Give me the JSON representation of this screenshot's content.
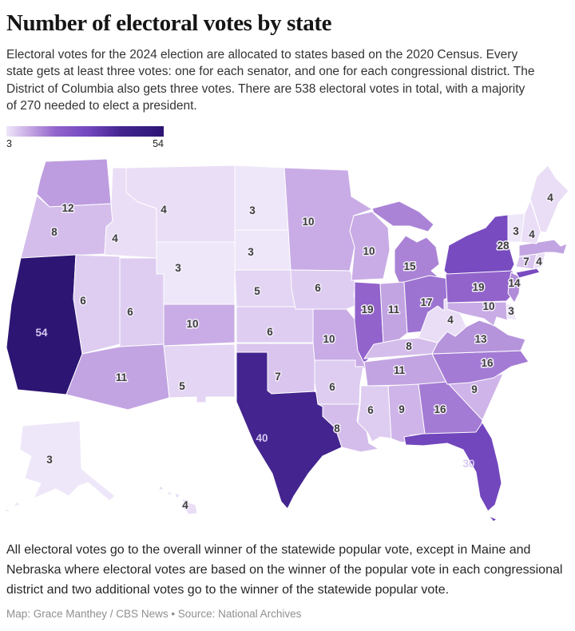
{
  "header": {
    "title": "Number of electoral votes by state",
    "description": "Electoral votes for the 2024 election are allocated to states based on the 2020 Census. Every state gets at least three votes: one for each senator, and one for each congressional district. The District of Columbia also gets three votes. There are 538 electoral votes in total, with a majority of 270 needed to elect a president."
  },
  "legend": {
    "min": "3",
    "max": "54"
  },
  "color_scale": [
    {
      "v": 3,
      "c": "#eee6f9"
    },
    {
      "v": 10,
      "c": "#c9ace5"
    },
    {
      "v": 19,
      "c": "#9163cb"
    },
    {
      "v": 30,
      "c": "#7246bd"
    },
    {
      "v": 40,
      "c": "#44258f"
    },
    {
      "v": 54,
      "c": "#2d1573"
    }
  ],
  "chart_data": {
    "type": "heatmap",
    "subtype": "us-choropleth",
    "title": "Number of electoral votes by state",
    "value_range": [
      3,
      54
    ],
    "total_votes": 538,
    "majority_needed": 270,
    "states": [
      {
        "abbr": "WA",
        "name": "Washington",
        "votes": 12
      },
      {
        "abbr": "OR",
        "name": "Oregon",
        "votes": 8
      },
      {
        "abbr": "CA",
        "name": "California",
        "votes": 54
      },
      {
        "abbr": "NV",
        "name": "Nevada",
        "votes": 6
      },
      {
        "abbr": "ID",
        "name": "Idaho",
        "votes": 4
      },
      {
        "abbr": "MT",
        "name": "Montana",
        "votes": 4
      },
      {
        "abbr": "WY",
        "name": "Wyoming",
        "votes": 3
      },
      {
        "abbr": "UT",
        "name": "Utah",
        "votes": 6
      },
      {
        "abbr": "CO",
        "name": "Colorado",
        "votes": 10
      },
      {
        "abbr": "AZ",
        "name": "Arizona",
        "votes": 11
      },
      {
        "abbr": "NM",
        "name": "New Mexico",
        "votes": 5
      },
      {
        "abbr": "ND",
        "name": "North Dakota",
        "votes": 3
      },
      {
        "abbr": "SD",
        "name": "South Dakota",
        "votes": 3
      },
      {
        "abbr": "NE",
        "name": "Nebraska",
        "votes": 5
      },
      {
        "abbr": "KS",
        "name": "Kansas",
        "votes": 6
      },
      {
        "abbr": "OK",
        "name": "Oklahoma",
        "votes": 7
      },
      {
        "abbr": "TX",
        "name": "Texas",
        "votes": 40
      },
      {
        "abbr": "MN",
        "name": "Minnesota",
        "votes": 10
      },
      {
        "abbr": "IA",
        "name": "Iowa",
        "votes": 6
      },
      {
        "abbr": "MO",
        "name": "Missouri",
        "votes": 10
      },
      {
        "abbr": "AR",
        "name": "Arkansas",
        "votes": 6
      },
      {
        "abbr": "LA",
        "name": "Louisiana",
        "votes": 8
      },
      {
        "abbr": "WI",
        "name": "Wisconsin",
        "votes": 10
      },
      {
        "abbr": "IL",
        "name": "Illinois",
        "votes": 19
      },
      {
        "abbr": "MI",
        "name": "Michigan",
        "votes": 15
      },
      {
        "abbr": "IN",
        "name": "Indiana",
        "votes": 11
      },
      {
        "abbr": "OH",
        "name": "Ohio",
        "votes": 17
      },
      {
        "abbr": "KY",
        "name": "Kentucky",
        "votes": 8
      },
      {
        "abbr": "TN",
        "name": "Tennessee",
        "votes": 11
      },
      {
        "abbr": "MS",
        "name": "Mississippi",
        "votes": 6
      },
      {
        "abbr": "AL",
        "name": "Alabama",
        "votes": 9
      },
      {
        "abbr": "GA",
        "name": "Georgia",
        "votes": 16
      },
      {
        "abbr": "FL",
        "name": "Florida",
        "votes": 30
      },
      {
        "abbr": "SC",
        "name": "South Carolina",
        "votes": 9
      },
      {
        "abbr": "NC",
        "name": "North Carolina",
        "votes": 16
      },
      {
        "abbr": "VA",
        "name": "Virginia",
        "votes": 13
      },
      {
        "abbr": "WV",
        "name": "West Virginia",
        "votes": 4
      },
      {
        "abbr": "MD",
        "name": "Maryland",
        "votes": 10
      },
      {
        "abbr": "DE",
        "name": "Delaware",
        "votes": 3
      },
      {
        "abbr": "PA",
        "name": "Pennsylvania",
        "votes": 19
      },
      {
        "abbr": "NJ",
        "name": "New Jersey",
        "votes": 14
      },
      {
        "abbr": "NY",
        "name": "New York",
        "votes": 28
      },
      {
        "abbr": "CT",
        "name": "Connecticut",
        "votes": 7
      },
      {
        "abbr": "RI",
        "name": "Rhode Island",
        "votes": 4
      },
      {
        "abbr": "MA",
        "name": "Massachusetts",
        "votes": 11,
        "label_hidden": true
      },
      {
        "abbr": "VT",
        "name": "Vermont",
        "votes": 3
      },
      {
        "abbr": "NH",
        "name": "New Hampshire",
        "votes": 4
      },
      {
        "abbr": "ME",
        "name": "Maine",
        "votes": 4
      },
      {
        "abbr": "AK",
        "name": "Alaska",
        "votes": 3
      },
      {
        "abbr": "HI",
        "name": "Hawaii",
        "votes": 4
      }
    ]
  },
  "footer": {
    "note": "All electoral votes go to the overall winner of the statewide popular vote, except in Maine and Nebraska where electoral votes are based on the winner of the popular vote in each congressional district and two additional votes go to the winner of the statewide popular vote.",
    "credit": "Map: Grace Manthey / CBS News • Source: National Archives"
  }
}
